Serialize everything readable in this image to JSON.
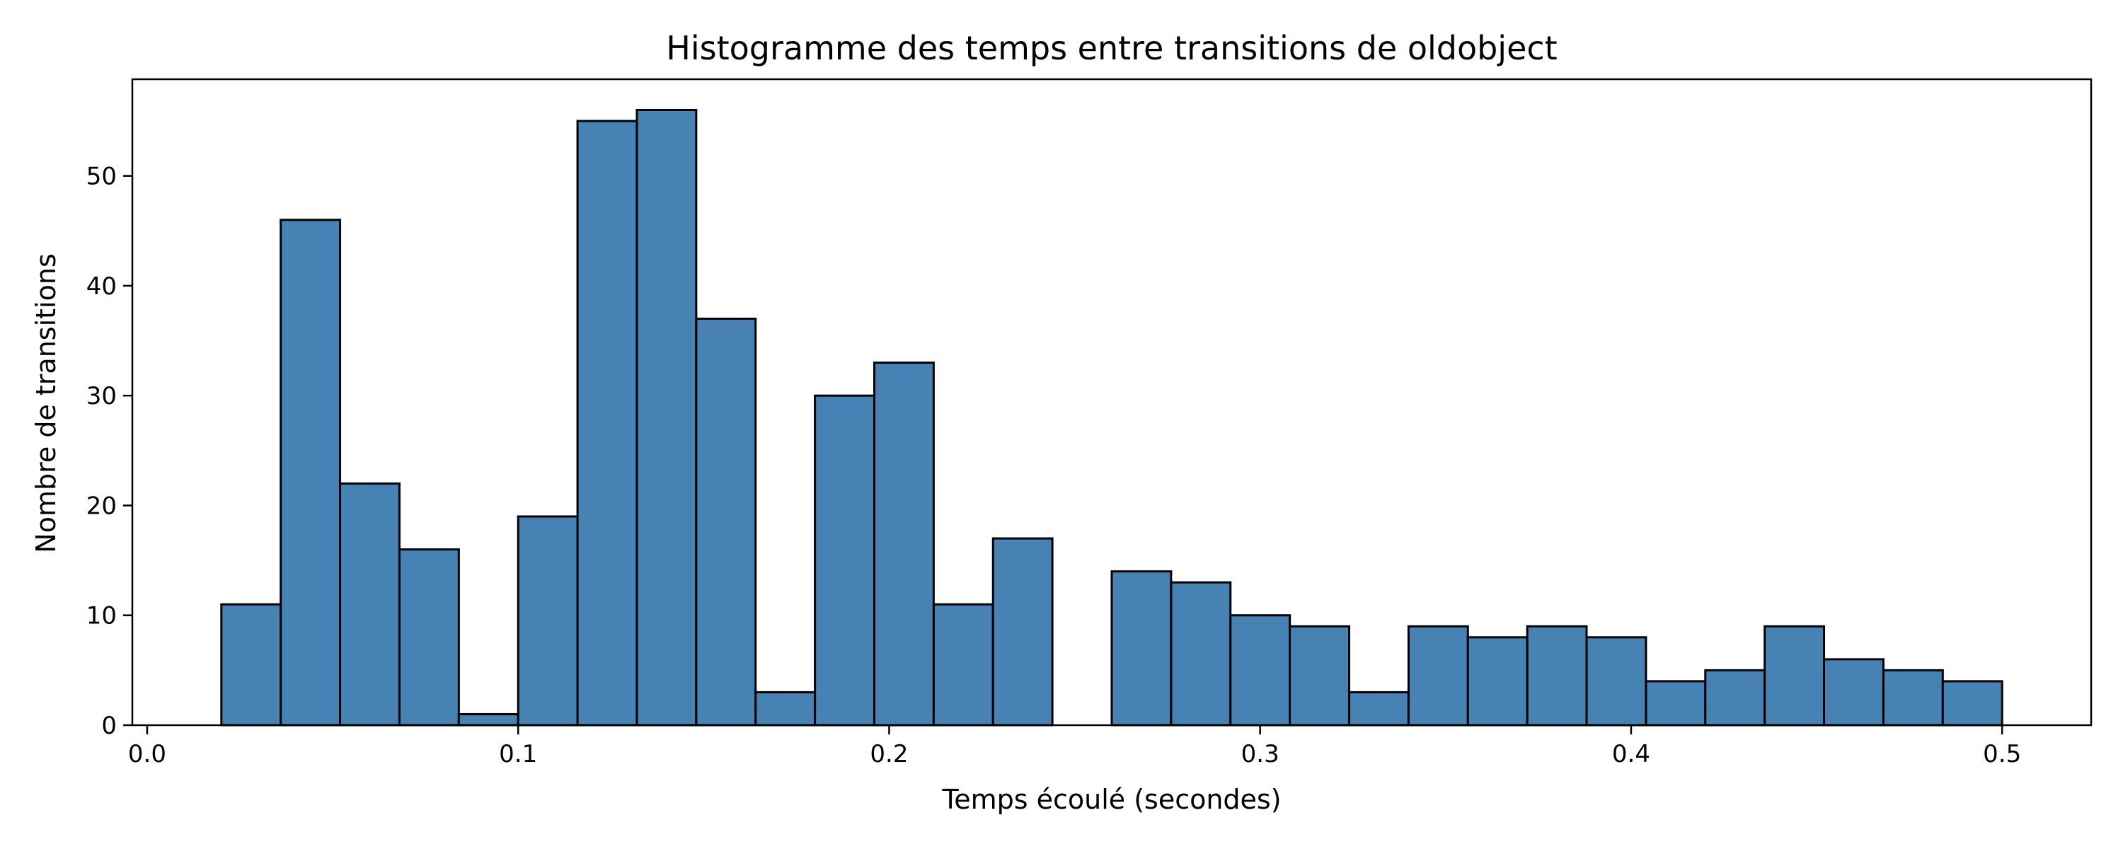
{
  "chart_data": {
    "type": "bar",
    "title": "Histogramme des temps entre transitions de oldobject",
    "xlabel": "Temps écoulé (secondes)",
    "ylabel": "Nombre de transitions",
    "bin_start": 0.02,
    "bin_width": 0.016,
    "values": [
      11,
      46,
      22,
      16,
      1,
      19,
      55,
      56,
      37,
      3,
      30,
      33,
      11,
      17,
      0,
      14,
      13,
      10,
      9,
      3,
      9,
      8,
      9,
      8,
      4,
      5,
      9,
      6,
      5,
      4
    ],
    "xlim": [
      -0.004,
      0.524
    ],
    "ylim": [
      0,
      58.8
    ],
    "xticks": [
      0.0,
      0.1,
      0.2,
      0.3,
      0.4,
      0.5
    ],
    "xtick_labels": [
      "0.0",
      "0.1",
      "0.2",
      "0.3",
      "0.4",
      "0.5"
    ],
    "yticks": [
      0,
      10,
      20,
      30,
      40,
      50
    ],
    "ytick_labels": [
      "0",
      "10",
      "20",
      "30",
      "40",
      "50"
    ],
    "grid": false,
    "colors": {
      "bar_fill": "#4682b4",
      "bar_edge": "#000000"
    }
  }
}
